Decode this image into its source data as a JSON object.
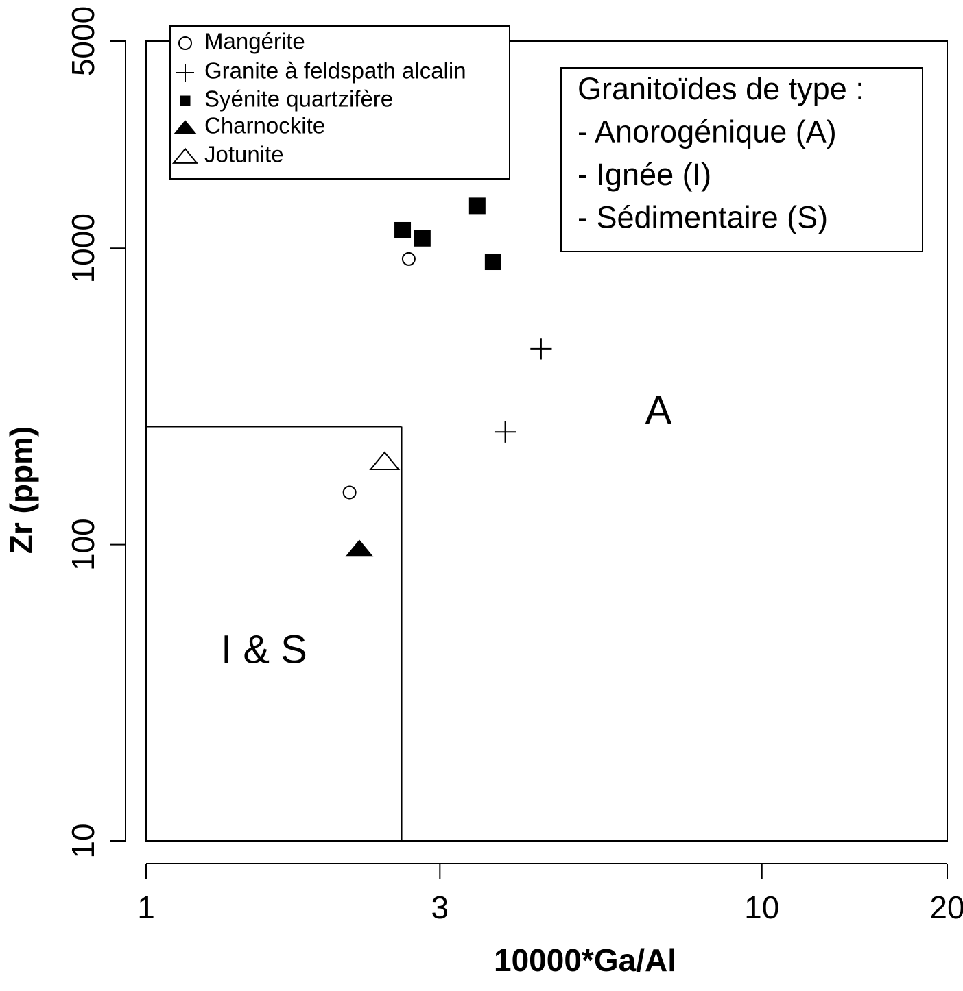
{
  "chart_data": {
    "type": "scatter",
    "x_label": "10000*Ga/Al",
    "y_label": "Zr (ppm)",
    "xscale": "log",
    "yscale": "log",
    "xlim": [
      1,
      20
    ],
    "ylim": [
      10,
      5000
    ],
    "xticks": [
      1,
      3,
      10,
      20
    ],
    "yticks": [
      10,
      100,
      1000,
      5000
    ],
    "grid": false,
    "legend": "top-left",
    "series": [
      {
        "name": "Mangérite",
        "marker": "open-circle",
        "color": "#000000",
        "x": [
          2.67,
          2.14
        ],
        "y": [
          920,
          150
        ]
      },
      {
        "name": "Granite à feldspath alcalin",
        "marker": "plus",
        "color": "#000000",
        "x": [
          4.38,
          3.83
        ],
        "y": [
          458,
          240
        ]
      },
      {
        "name": "Syénite quartzifère",
        "marker": "filled-square",
        "color": "#000000",
        "x": [
          2.61,
          2.81,
          3.45,
          3.66
        ],
        "y": [
          1150,
          1080,
          1390,
          900
        ]
      },
      {
        "name": "Charnockite",
        "marker": "filled-triangle",
        "color": "#000000",
        "x": [
          2.22
        ],
        "y": [
          97
        ]
      },
      {
        "name": "Jotunite",
        "marker": "open-triangle",
        "color": "#000000",
        "x": [
          2.44
        ],
        "y": [
          191
        ]
      }
    ],
    "boundary": {
      "x": 2.6,
      "y": 250
    },
    "region_labels": [
      "A",
      "I & S"
    ],
    "note_box": [
      "Granitoïdes de type :",
      "- Anorogénique (A)",
      "- Ignée (I)",
      "- Sédimentaire (S)"
    ]
  }
}
